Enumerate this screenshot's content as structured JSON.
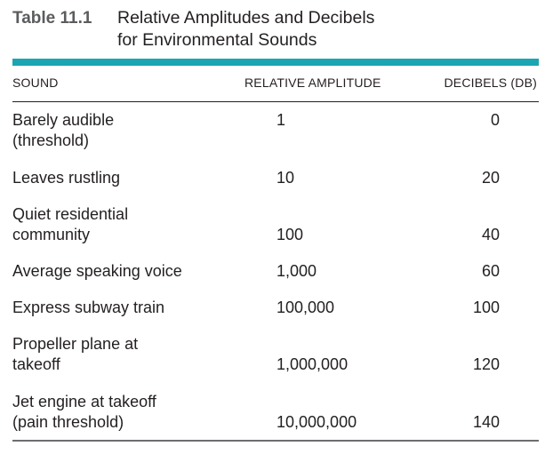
{
  "caption": {
    "label": "Table 11.1",
    "title_line1": "Relative Amplitudes and Decibels",
    "title_line2": "for Environmental Sounds"
  },
  "columns": {
    "sound": "SOUND",
    "relative_amplitude": "RELATIVE AMPLITUDE",
    "decibels": "DECIBELS (DB)"
  },
  "rows": [
    {
      "sound_line1": "Barely audible",
      "sound_line2": "(threshold)",
      "amplitude": "1",
      "decibels": "0"
    },
    {
      "sound_line1": "Leaves rustling",
      "sound_line2": "",
      "amplitude": "10",
      "decibels": "20"
    },
    {
      "sound_line1": "Quiet residential",
      "sound_line2": "community",
      "amplitude": "100",
      "decibels": "40"
    },
    {
      "sound_line1": "Average speaking voice",
      "sound_line2": "",
      "amplitude": "1,000",
      "decibels": "60"
    },
    {
      "sound_line1": "Express subway train",
      "sound_line2": "",
      "amplitude": "100,000",
      "decibels": "100"
    },
    {
      "sound_line1": "Propeller plane at",
      "sound_line2": "takeoff",
      "amplitude": "1,000,000",
      "decibels": "120"
    },
    {
      "sound_line1": "Jet engine at takeoff",
      "sound_line2": "(pain threshold)",
      "amplitude": "10,000,000",
      "decibels": "140"
    }
  ],
  "colors": {
    "rule_accent": "#1ba5b2",
    "label_gray": "#5a5c5e",
    "text": "#231f20"
  }
}
